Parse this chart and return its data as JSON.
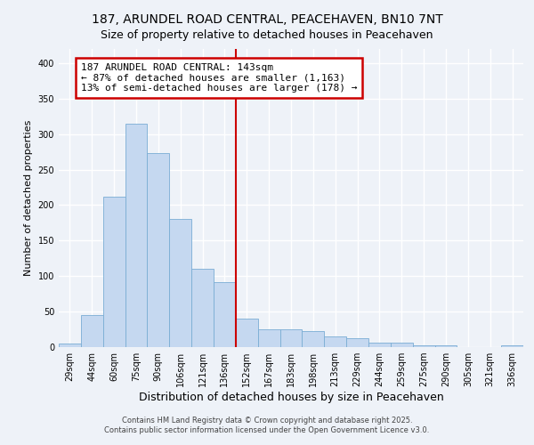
{
  "title": "187, ARUNDEL ROAD CENTRAL, PEACEHAVEN, BN10 7NT",
  "subtitle": "Size of property relative to detached houses in Peacehaven",
  "xlabel": "Distribution of detached houses by size in Peacehaven",
  "ylabel": "Number of detached properties",
  "bar_labels": [
    "29sqm",
    "44sqm",
    "60sqm",
    "75sqm",
    "90sqm",
    "106sqm",
    "121sqm",
    "136sqm",
    "152sqm",
    "167sqm",
    "183sqm",
    "198sqm",
    "213sqm",
    "229sqm",
    "244sqm",
    "259sqm",
    "275sqm",
    "290sqm",
    "305sqm",
    "321sqm",
    "336sqm"
  ],
  "bar_values": [
    5,
    45,
    212,
    315,
    273,
    180,
    110,
    92,
    40,
    25,
    25,
    22,
    15,
    13,
    6,
    6,
    3,
    2,
    0,
    0,
    3
  ],
  "bar_color": "#c5d8f0",
  "bar_edge_color": "#7aadd4",
  "vline_x_idx": 7.5,
  "vline_color": "#cc0000",
  "annotation_title": "187 ARUNDEL ROAD CENTRAL: 143sqm",
  "annotation_line1": "← 87% of detached houses are smaller (1,163)",
  "annotation_line2": "13% of semi-detached houses are larger (178) →",
  "annotation_box_edge": "#cc0000",
  "ylim": [
    0,
    420
  ],
  "yticks": [
    0,
    50,
    100,
    150,
    200,
    250,
    300,
    350,
    400
  ],
  "footnote1": "Contains HM Land Registry data © Crown copyright and database right 2025.",
  "footnote2": "Contains public sector information licensed under the Open Government Licence v3.0.",
  "bg_color": "#eef2f8",
  "grid_color": "#ffffff",
  "title_fontsize": 10,
  "subtitle_fontsize": 9,
  "xlabel_fontsize": 9,
  "ylabel_fontsize": 8,
  "tick_fontsize": 7,
  "annotation_fontsize": 8,
  "footnote_fontsize": 6
}
